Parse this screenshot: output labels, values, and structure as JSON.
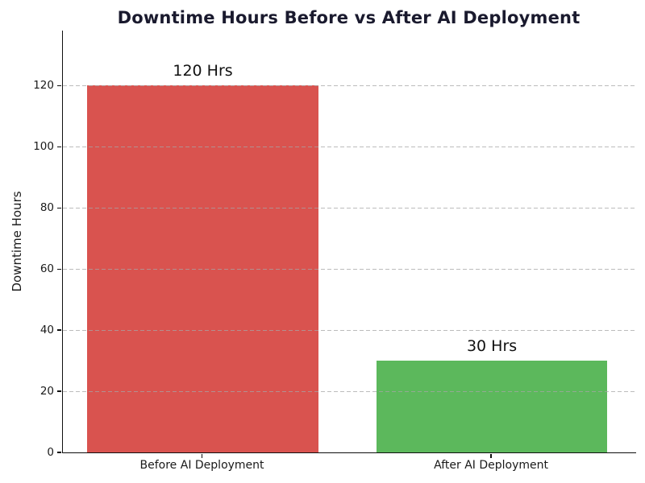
{
  "chart_data": {
    "type": "bar",
    "title": "Downtime Hours Before vs After AI Deployment",
    "categories": [
      "Before AI Deployment",
      "After AI Deployment"
    ],
    "values": [
      120,
      30
    ],
    "bar_labels": [
      "120 Hrs",
      "30 Hrs"
    ],
    "bar_colors": [
      "#d9534f",
      "#5cb85c"
    ],
    "xlabel": "",
    "ylabel": "Downtime Hours",
    "ylim": [
      0,
      138
    ],
    "xlim": [
      -0.484,
      1.499
    ],
    "bar_width_units": 0.8,
    "yticks": [
      0,
      20,
      40,
      60,
      80,
      100,
      120
    ],
    "grid": "horizontal-dashed",
    "grid_above_bars": true,
    "legend": null,
    "colors": {
      "title": "#1a1a2e",
      "axis": "#0f0f0f",
      "grid": "#a5a5a5",
      "text": "#1a1a1a"
    }
  }
}
